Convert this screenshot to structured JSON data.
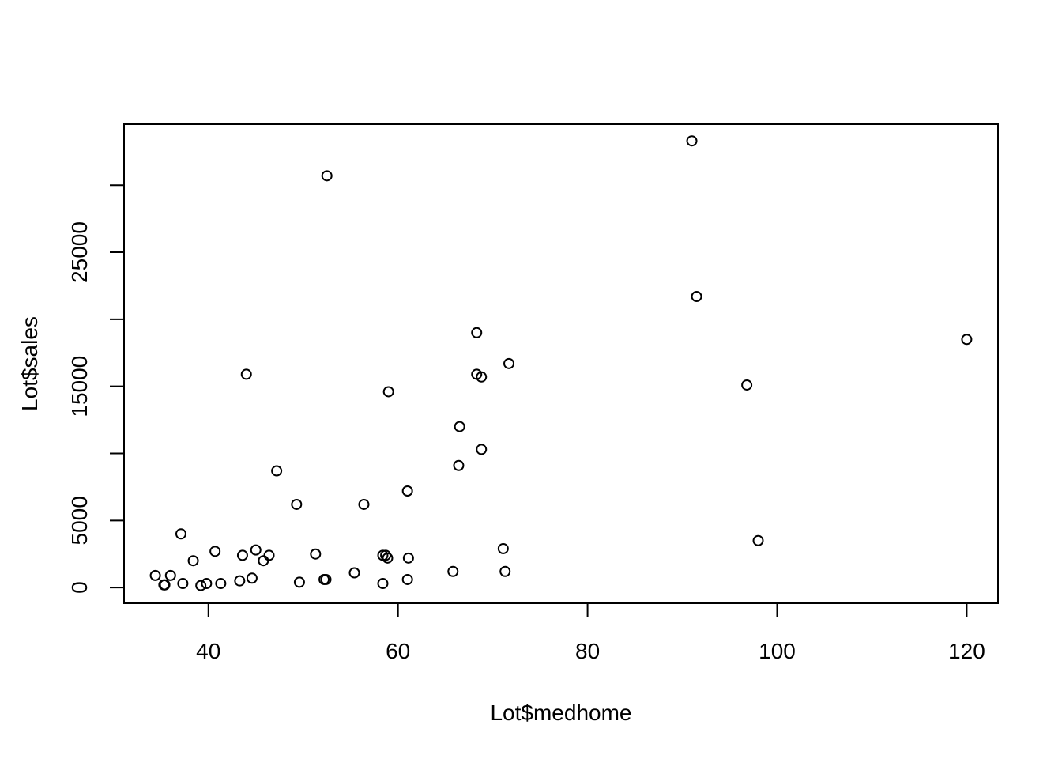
{
  "chart_data": {
    "type": "scatter",
    "title": "",
    "xlabel": "Lot$medhome",
    "ylabel": "Lot$sales",
    "xlim": [
      31.1,
      123.3
    ],
    "ylim": [
      -1170,
      34550
    ],
    "x_ticks": [
      40,
      60,
      80,
      100,
      120
    ],
    "y_ticks": [
      0,
      5000,
      10000,
      15000,
      20000,
      25000,
      30000
    ],
    "y_tick_labels": [
      "0",
      "5000",
      "",
      "15000",
      "",
      "25000",
      ""
    ],
    "grid": false,
    "legend": "none",
    "marker": "open-circle",
    "color": "#000000",
    "points": [
      [
        91.0,
        33300
      ],
      [
        52.5,
        30700
      ],
      [
        91.5,
        21700
      ],
      [
        120.0,
        18500
      ],
      [
        68.3,
        19000
      ],
      [
        71.7,
        16700
      ],
      [
        68.3,
        15900
      ],
      [
        68.8,
        15700
      ],
      [
        44.0,
        15900
      ],
      [
        96.8,
        15100
      ],
      [
        59.0,
        14600
      ],
      [
        66.5,
        12000
      ],
      [
        68.8,
        10300
      ],
      [
        66.4,
        9100
      ],
      [
        47.2,
        8700
      ],
      [
        61.0,
        7200
      ],
      [
        49.3,
        6200
      ],
      [
        56.4,
        6200
      ],
      [
        37.1,
        4000
      ],
      [
        98.0,
        3500
      ],
      [
        71.1,
        2900
      ],
      [
        45.0,
        2800
      ],
      [
        40.7,
        2700
      ],
      [
        51.3,
        2500
      ],
      [
        46.4,
        2400
      ],
      [
        43.6,
        2400
      ],
      [
        58.4,
        2400
      ],
      [
        58.7,
        2400
      ],
      [
        58.9,
        2200
      ],
      [
        61.1,
        2200
      ],
      [
        45.8,
        2000
      ],
      [
        38.4,
        2000
      ],
      [
        55.4,
        1100
      ],
      [
        65.8,
        1200
      ],
      [
        71.3,
        1200
      ],
      [
        34.4,
        900
      ],
      [
        36.0,
        900
      ],
      [
        44.6,
        700
      ],
      [
        52.2,
        600
      ],
      [
        52.4,
        600
      ],
      [
        61.0,
        600
      ],
      [
        43.3,
        500
      ],
      [
        49.6,
        400
      ],
      [
        37.3,
        300
      ],
      [
        39.8,
        300
      ],
      [
        41.3,
        300
      ],
      [
        58.4,
        300
      ],
      [
        35.4,
        200
      ],
      [
        35.3,
        200
      ],
      [
        39.2,
        150
      ]
    ]
  }
}
